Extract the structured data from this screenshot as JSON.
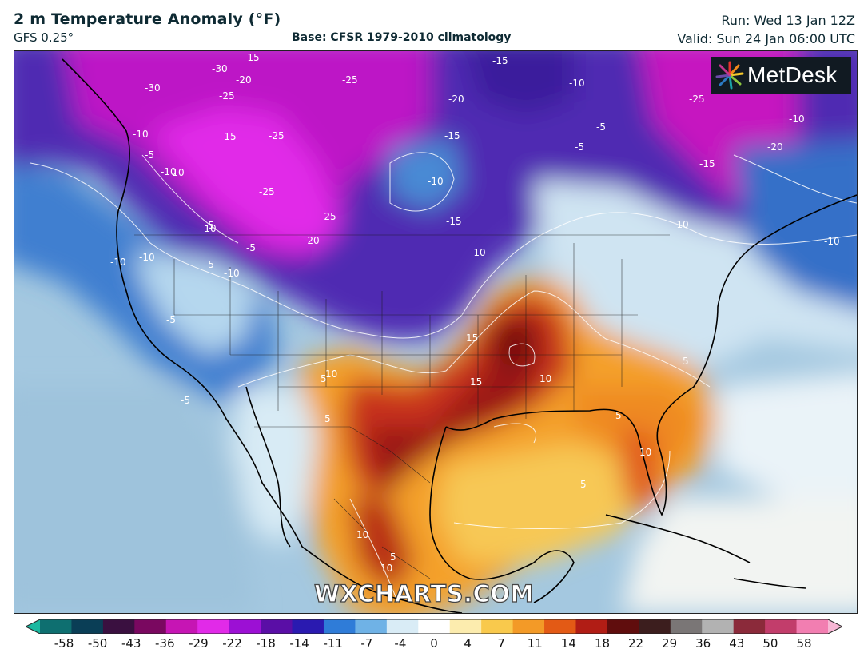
{
  "header": {
    "title": "2 m Temperature Anomaly (°F)",
    "model": "GFS 0.25°",
    "base": "Base: CFSR 1979-2010 climatology",
    "run": "Run: Wed 13 Jan 12Z",
    "valid": "Valid: Sun 24 Jan 06:00 UTC"
  },
  "branding": {
    "logo_text": "MetDesk",
    "watermark": "WXCHARTS.COM"
  },
  "map": {
    "region": "North America",
    "contour_labels": [
      "-30",
      "-30",
      "-15",
      "-20",
      "-25",
      "-25",
      "-20",
      "-15",
      "-10",
      "-10",
      "-25",
      "-10",
      "-10",
      "-15",
      "-25",
      "-15",
      "-10",
      "-5",
      "-10",
      "-5",
      "-5",
      "-15",
      "-20",
      "-10",
      "-25",
      "-25",
      "-15",
      "-20",
      "-10",
      "-10",
      "-10",
      "-5",
      "-10",
      "-5",
      "-10",
      "-5",
      "-10",
      "-5",
      "-5",
      "15",
      "10",
      "5",
      "15",
      "10",
      "5",
      "5",
      "5",
      "10",
      "5",
      "10",
      "10",
      "5"
    ]
  },
  "colorbar": {
    "ticks": [
      "-58",
      "-50",
      "-43",
      "-36",
      "-29",
      "-22",
      "-18",
      "-14",
      "-11",
      "-7",
      "-4",
      "0",
      "4",
      "7",
      "11",
      "14",
      "18",
      "22",
      "29",
      "36",
      "43",
      "50",
      "58"
    ],
    "colors": [
      "#1ab8a0",
      "#0e6f70",
      "#0a3e56",
      "#3a1040",
      "#7a0860",
      "#c615b4",
      "#e12ae8",
      "#9c10d4",
      "#5a0ea6",
      "#2a1ab0",
      "#2f7cd8",
      "#6fb2e6",
      "#d9ecf6",
      "#ffffff",
      "#fcecae",
      "#f9c94c",
      "#f39a27",
      "#e35a15",
      "#b11d15",
      "#600d0d",
      "#3c1e1e",
      "#7a7676",
      "#b2b2b2",
      "#8b2a3a",
      "#c23d6b",
      "#f27eb1",
      "#f7b7d5"
    ]
  }
}
